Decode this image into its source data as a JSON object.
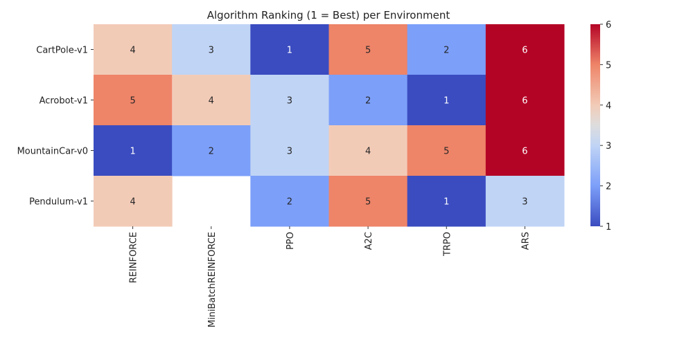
{
  "chart_data": {
    "type": "heatmap",
    "title": "Algorithm Ranking (1 = Best) per Environment",
    "xlabel": "",
    "ylabel": "",
    "columns": [
      "REINFORCE",
      "MiniBatchREINFORCE",
      "PPO",
      "A2C",
      "TRPO",
      "ARS"
    ],
    "rows": [
      "CartPole-v1",
      "Acrobot-v1",
      "MountainCar-v0",
      "Pendulum-v1"
    ],
    "values": [
      [
        4,
        3,
        1,
        5,
        2,
        6
      ],
      [
        5,
        4,
        3,
        2,
        1,
        6
      ],
      [
        1,
        2,
        3,
        4,
        5,
        6
      ],
      [
        4,
        null,
        2,
        5,
        1,
        3
      ]
    ],
    "colormap": "coolwarm",
    "value_range": [
      1,
      6
    ],
    "colorbar_ticks": [
      1,
      2,
      3,
      4,
      5,
      6
    ],
    "annotated": true
  }
}
